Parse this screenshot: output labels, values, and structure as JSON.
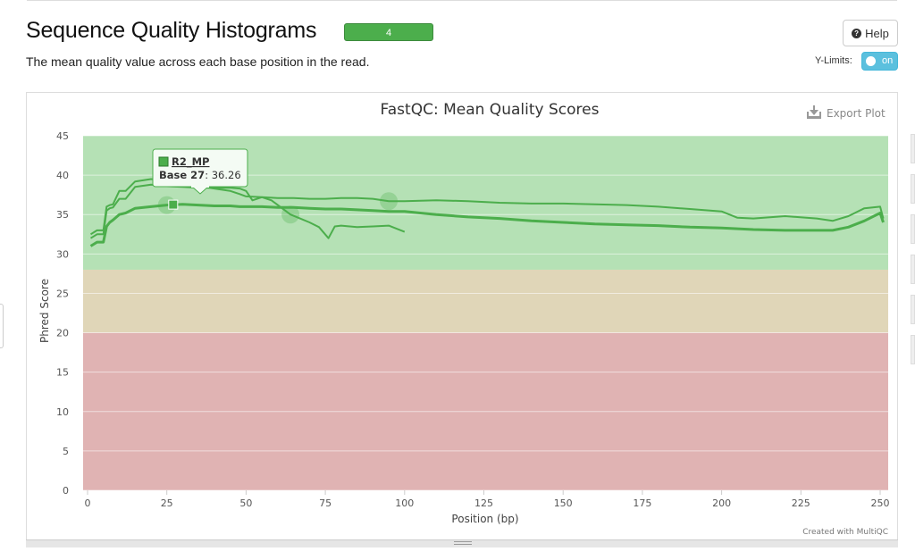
{
  "header": {
    "title": "Sequence Quality Histograms",
    "badge": "4",
    "description": "The mean quality value across each base position in the read.",
    "help_label": "Help",
    "help_icon": "question-icon",
    "ylimits_label": "Y-Limits:",
    "ylimits_toggle": "on"
  },
  "plot": {
    "export_label": "Export Plot",
    "credit": "Created with MultiQC"
  },
  "colors": {
    "line": "#4cae4c",
    "zone_good": "#b5e1b5",
    "zone_warn": "#e0d6b8",
    "zone_fail": "#e0b3b3"
  },
  "tooltip": {
    "series": "R2_MP",
    "label": "Base 27",
    "value": ": 36.26"
  },
  "chart_data": {
    "type": "line",
    "title": "FastQC: Mean Quality Scores",
    "xlabel": "Position (bp)",
    "ylabel": "Phred Score",
    "xlim": [
      0,
      252
    ],
    "ylim": [
      0,
      45
    ],
    "xticks": [
      0,
      25,
      50,
      75,
      100,
      125,
      150,
      175,
      200,
      225,
      250
    ],
    "yticks": [
      0,
      5,
      10,
      15,
      20,
      25,
      30,
      35,
      40,
      45
    ],
    "grid": true,
    "bands": [
      {
        "from": 28,
        "to": 45,
        "color": "#b5e1b5"
      },
      {
        "from": 20,
        "to": 28,
        "color": "#e0d6b8"
      },
      {
        "from": 0,
        "to": 20,
        "color": "#e0b3b3"
      }
    ],
    "series": [
      {
        "name": "",
        "x": [
          1,
          3,
          5,
          6,
          7,
          8,
          10,
          12,
          15,
          20,
          25,
          30,
          35,
          40,
          45,
          48,
          50,
          55,
          60,
          65,
          70,
          75,
          80,
          85,
          90,
          95,
          100,
          110,
          120,
          130,
          140,
          150,
          160,
          170,
          180,
          190,
          200,
          205,
          210,
          220,
          230,
          235,
          240,
          245,
          250,
          251
        ],
        "y": [
          32.5,
          33,
          33,
          36,
          36.2,
          36.3,
          38,
          38,
          39.2,
          39.5,
          39.3,
          39,
          38.6,
          38.3,
          38,
          37.6,
          37.3,
          37.2,
          37.1,
          37.1,
          37,
          37,
          37.1,
          37.1,
          37,
          36.7,
          36.7,
          36.8,
          36.7,
          36.5,
          36.4,
          36.4,
          36.3,
          36.2,
          36,
          35.7,
          35.4,
          34.6,
          34.5,
          34.8,
          34.5,
          34.2,
          34.8,
          35.8,
          36,
          34.5
        ],
        "marker_at": 97
      },
      {
        "name": "",
        "x": [
          1,
          3,
          5,
          6,
          7,
          8,
          10,
          12,
          15,
          20,
          25,
          30,
          35,
          40,
          45,
          48,
          50,
          55,
          60,
          65,
          70,
          75,
          80,
          85,
          90,
          95,
          100,
          110,
          120,
          130,
          140,
          150,
          160,
          170,
          180,
          190,
          200,
          205,
          210,
          220,
          230,
          235,
          240,
          245,
          250,
          251
        ],
        "y": [
          31,
          31.5,
          31.5,
          33.5,
          34,
          34.3,
          35,
          35.2,
          35.8,
          36,
          36.2,
          36.3,
          36.2,
          36.1,
          36.1,
          36.0,
          36.0,
          36.0,
          35.9,
          35.9,
          35.8,
          35.7,
          35.7,
          35.6,
          35.5,
          35.4,
          35.4,
          35,
          34.7,
          34.5,
          34.2,
          34,
          33.8,
          33.7,
          33.6,
          33.4,
          33.3,
          33.2,
          33.1,
          33,
          33,
          33,
          33.4,
          34.2,
          35.2,
          34
        ],
        "marker_at": 27
      },
      {
        "name": "",
        "x": [
          1,
          3,
          5,
          6,
          7,
          8,
          10,
          12,
          15,
          20,
          25,
          30,
          35,
          40,
          45,
          48,
          50,
          52,
          55,
          58,
          60,
          64,
          67,
          70,
          73,
          76,
          78,
          80,
          85,
          90,
          95,
          100
        ],
        "y": [
          32,
          32.5,
          32.5,
          35.5,
          35.8,
          35.9,
          37,
          37,
          38.5,
          38.8,
          38.6,
          38.5,
          38.4,
          38.4,
          38.4,
          38.3,
          38,
          36.8,
          37.2,
          36.8,
          36.2,
          35,
          34.5,
          34,
          33.4,
          32,
          33.5,
          33.6,
          33.4,
          33.5,
          33.6,
          32.8
        ],
        "marker_at": 64
      }
    ],
    "highlight": {
      "series_index": 1,
      "x": 27,
      "y": 36.26
    }
  }
}
